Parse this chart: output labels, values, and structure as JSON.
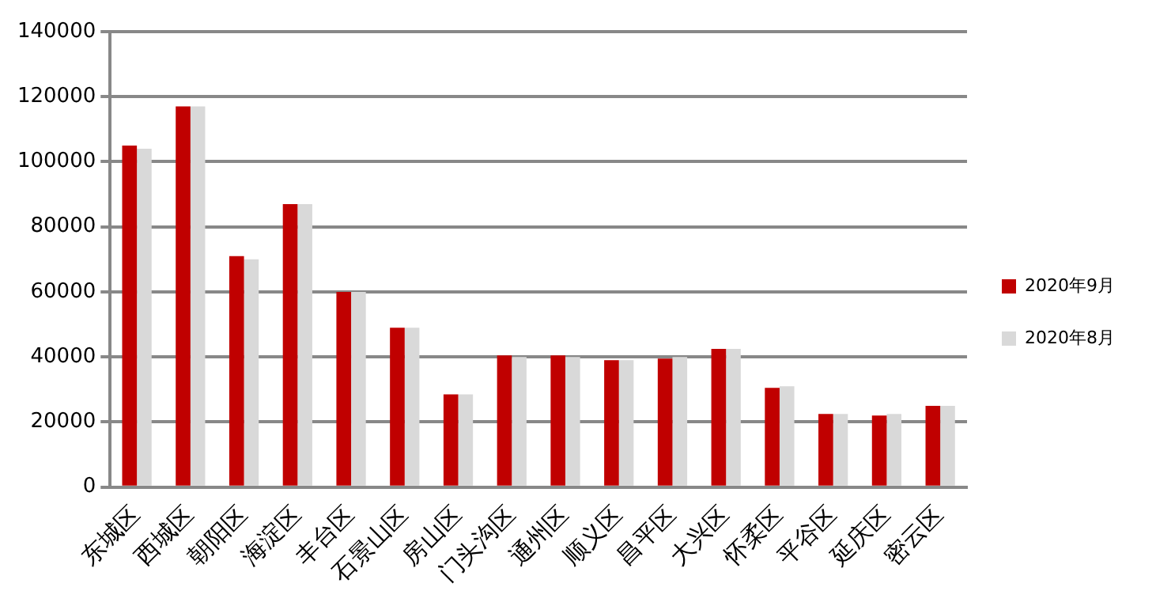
{
  "chart_data": {
    "type": "bar",
    "categories": [
      "东城区",
      "西城区",
      "朝阳区",
      "海淀区",
      "丰台区",
      "石景山区",
      "房山区",
      "门头沟区",
      "通州区",
      "顺义区",
      "昌平区",
      "大兴区",
      "怀柔区",
      "平谷区",
      "延庆区",
      "密云区"
    ],
    "series": [
      {
        "name": "2020年9月",
        "color": "#c00000",
        "values": [
          105000,
          117000,
          71000,
          87000,
          60000,
          49000,
          28500,
          40500,
          40500,
          39000,
          39500,
          42500,
          30500,
          22500,
          22000,
          25000
        ]
      },
      {
        "name": "2020年8月",
        "color": "#d9d9d9",
        "values": [
          104000,
          117000,
          70000,
          87000,
          60000,
          49000,
          28500,
          40000,
          40000,
          39000,
          40000,
          42500,
          31000,
          22500,
          22500,
          25000
        ]
      }
    ],
    "ylim": [
      0,
      140000
    ],
    "yticks": [
      0,
      20000,
      40000,
      60000,
      80000,
      100000,
      120000,
      140000
    ],
    "grid": "y",
    "legend": "right"
  }
}
